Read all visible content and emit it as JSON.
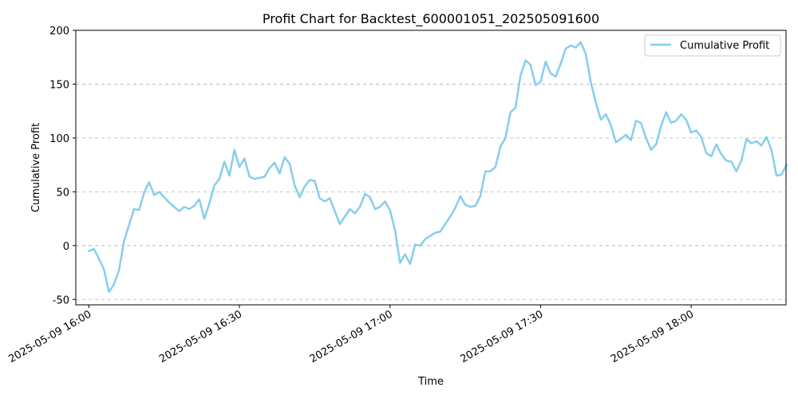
{
  "chart_data": {
    "type": "line",
    "title": "Profit Chart for Backtest_600001051_202505091600",
    "xlabel": "Time",
    "ylabel": "Cumulative Profit",
    "ylim": [
      -55,
      200
    ],
    "yticks": [
      -50,
      0,
      50,
      100,
      150,
      200
    ],
    "xlim": [
      -2.6,
      138.9
    ],
    "xticks": [
      {
        "minute": 0,
        "label": "2025-05-09 16:00"
      },
      {
        "minute": 30,
        "label": "2025-05-09 16:30"
      },
      {
        "minute": 60,
        "label": "2025-05-09 17:00"
      },
      {
        "minute": 90,
        "label": "2025-05-09 17:30"
      },
      {
        "minute": 120,
        "label": "2025-05-09 18:00"
      }
    ],
    "grid": "y-dashed",
    "legend": {
      "position": "top-right"
    },
    "series": [
      {
        "name": "Cumulative Profit",
        "color": "#87ceeb",
        "x": [
          0,
          1,
          2,
          3,
          4,
          5,
          6,
          7,
          8,
          9,
          10,
          11,
          12,
          13,
          14,
          15,
          16,
          17,
          18,
          19,
          20,
          21,
          22,
          23,
          24,
          25,
          26,
          27,
          28,
          29,
          30,
          31,
          32,
          33,
          34,
          35,
          36,
          37,
          38,
          39,
          40,
          41,
          42,
          43,
          44,
          45,
          46,
          47,
          48,
          49,
          50,
          51,
          52,
          53,
          54,
          55,
          56,
          57,
          58,
          59,
          60,
          61,
          62,
          63,
          64,
          65,
          66,
          67,
          68,
          69,
          70,
          71,
          72,
          73,
          74,
          75,
          76,
          77,
          78,
          79,
          80,
          81,
          82,
          83,
          84,
          85,
          86,
          87,
          88,
          89,
          90,
          91,
          92,
          93,
          94,
          95,
          96,
          97,
          98,
          99,
          100,
          101,
          102,
          103,
          104,
          105,
          106,
          107,
          108,
          109,
          110,
          111,
          112,
          113,
          114,
          115,
          116,
          117,
          118,
          119,
          120,
          121,
          122,
          123,
          124,
          125,
          126,
          127,
          128,
          129,
          130,
          131,
          132,
          133,
          134,
          135,
          136,
          137,
          138,
          139
        ],
        "values": [
          -5,
          -3,
          -12,
          -22,
          -43,
          -36,
          -23,
          4,
          19,
          34,
          33,
          49,
          59,
          47,
          50,
          45,
          40,
          36,
          32,
          36,
          34,
          37,
          43,
          25,
          39,
          56,
          62,
          78,
          65,
          89,
          73,
          81,
          64,
          62,
          63,
          64,
          72,
          77,
          67,
          82,
          76,
          56,
          45,
          55,
          61,
          60,
          44,
          41,
          44,
          32,
          20,
          27,
          34,
          30,
          36,
          48,
          45,
          34,
          36,
          41,
          33,
          14,
          -16,
          -8,
          -17,
          1,
          0,
          6,
          9,
          12,
          13,
          20,
          27,
          35,
          46,
          38,
          36,
          37,
          46,
          69,
          69,
          73,
          92,
          100,
          124,
          128,
          158,
          172,
          168,
          149,
          152,
          171,
          160,
          157,
          169,
          183,
          186,
          184,
          189,
          178,
          152,
          133,
          117,
          122,
          112,
          96,
          99,
          103,
          98,
          116,
          114,
          100,
          89,
          94,
          111,
          124,
          114,
          116,
          122,
          117,
          105,
          107,
          101,
          86,
          83,
          94,
          85,
          79,
          78,
          69,
          79,
          99,
          95,
          97,
          93,
          101,
          89,
          65,
          66,
          75
        ]
      }
    ]
  }
}
